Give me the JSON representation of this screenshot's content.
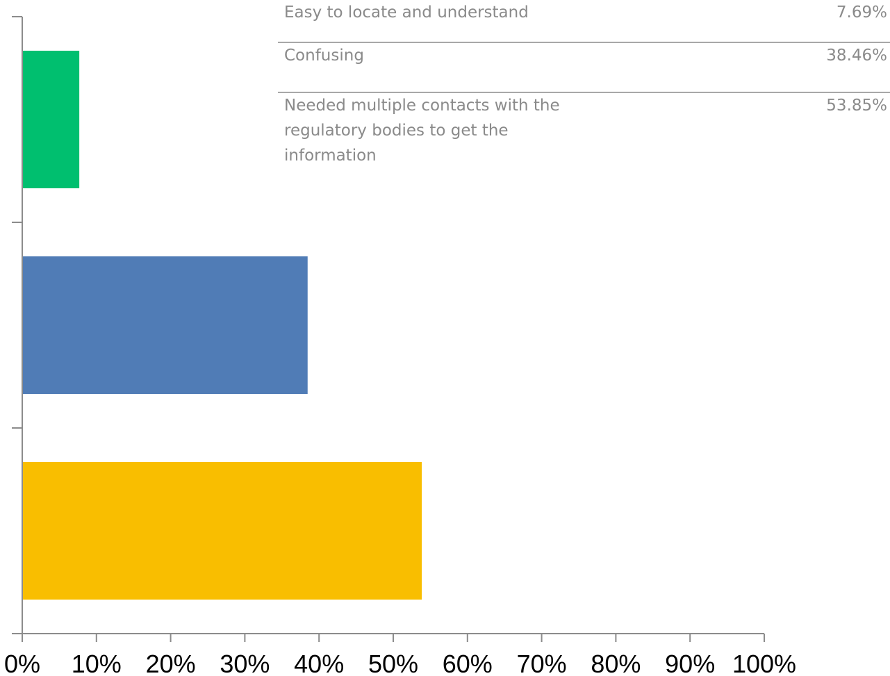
{
  "chart_data": {
    "type": "bar",
    "orientation": "horizontal",
    "categories": [
      "Easy to locate and understand",
      "Confusing",
      "Needed multiple contacts with the regulatory bodies to get the information"
    ],
    "values": [
      7.69,
      38.46,
      53.85
    ],
    "value_labels": [
      "7.69%",
      "38.46%",
      "53.85%"
    ],
    "colors": [
      "#00bf6f",
      "#507cb6",
      "#f9be00"
    ],
    "xlim": [
      0,
      100
    ],
    "x_ticks": [
      "0%",
      "10%",
      "20%",
      "30%",
      "40%",
      "50%",
      "60%",
      "70%",
      "80%",
      "90%",
      "100%"
    ],
    "title": "",
    "xlabel": "",
    "ylabel": "",
    "grid": false,
    "legend_placement": "top-right"
  }
}
